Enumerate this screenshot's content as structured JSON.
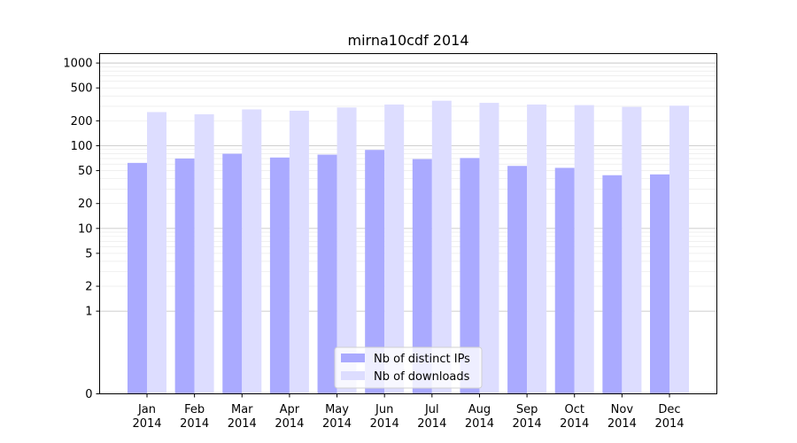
{
  "chart_data": {
    "type": "bar",
    "title": "mirna10cdf 2014",
    "xlabel": "",
    "ylabel": "",
    "yscale": "symlog",
    "ylim": [
      0,
      1300
    ],
    "yticks": [
      0,
      1,
      2,
      5,
      10,
      20,
      50,
      100,
      200,
      500,
      1000
    ],
    "ytick_labels": [
      "0",
      "1",
      "2",
      "5",
      "10",
      "20",
      "50",
      "100",
      "200",
      "500",
      "1000"
    ],
    "categories": [
      [
        "Jan",
        "2014"
      ],
      [
        "Feb",
        "2014"
      ],
      [
        "Mar",
        "2014"
      ],
      [
        "Apr",
        "2014"
      ],
      [
        "May",
        "2014"
      ],
      [
        "Jun",
        "2014"
      ],
      [
        "Jul",
        "2014"
      ],
      [
        "Aug",
        "2014"
      ],
      [
        "Sep",
        "2014"
      ],
      [
        "Oct",
        "2014"
      ],
      [
        "Nov",
        "2014"
      ],
      [
        "Dec",
        "2014"
      ]
    ],
    "series": [
      {
        "name": "Nb of distinct IPs",
        "color": "#aaaaff",
        "values": [
          62,
          70,
          80,
          72,
          78,
          89,
          69,
          71,
          57,
          54,
          44,
          45
        ]
      },
      {
        "name": "Nb of downloads",
        "color": "#ddddff",
        "values": [
          255,
          240,
          275,
          265,
          290,
          315,
          350,
          330,
          315,
          310,
          295,
          305
        ]
      }
    ],
    "legend": "bottom-center",
    "grid": true
  }
}
